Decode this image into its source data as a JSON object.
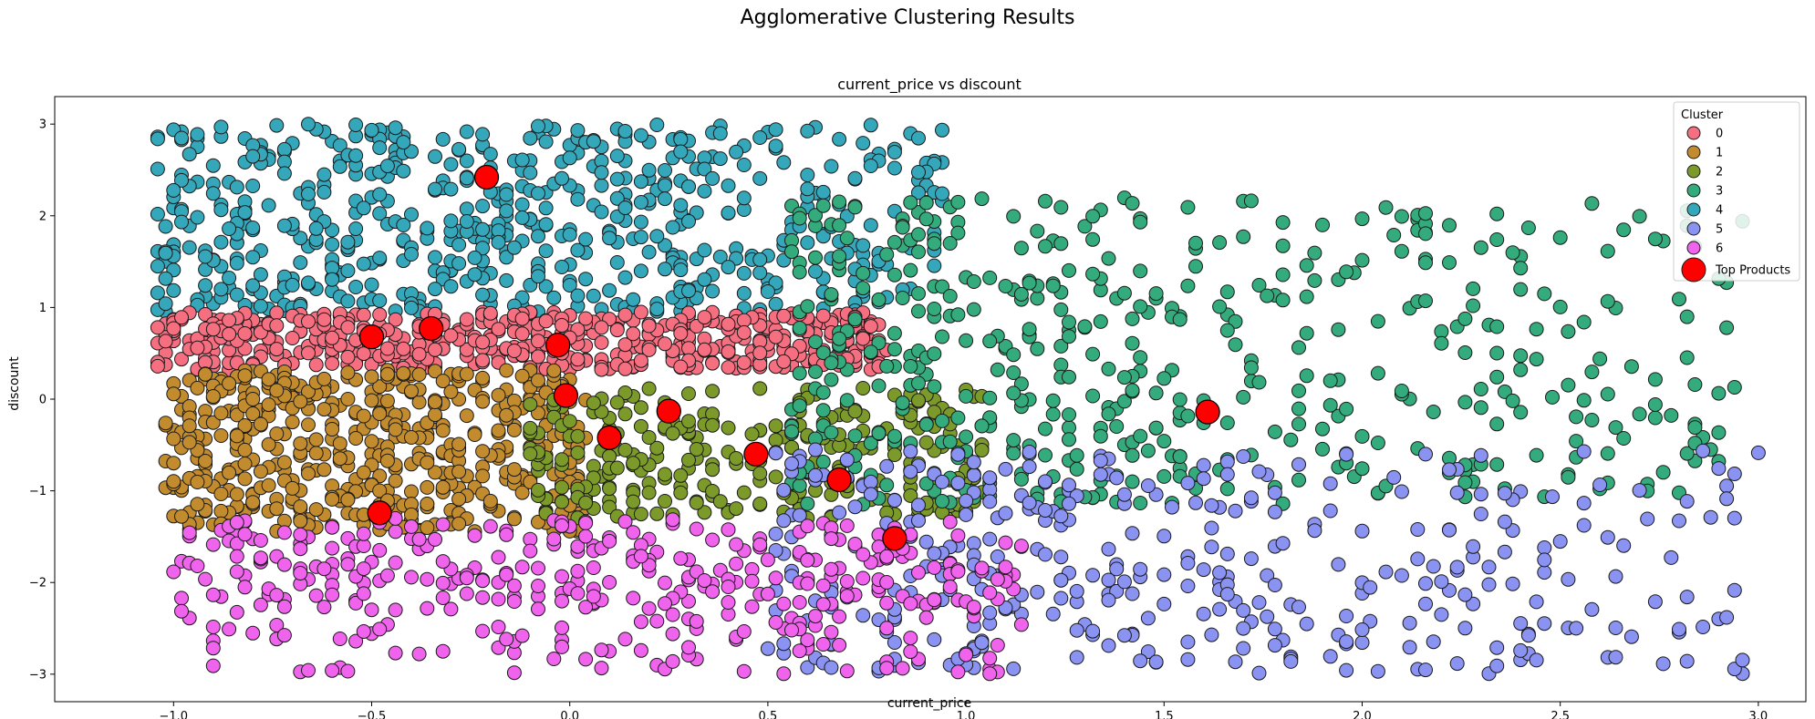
{
  "chart_data": {
    "type": "scatter",
    "title": "Agglomerative Clustering Results",
    "subtitle": "current_price vs discount",
    "xlabel": "current_price",
    "ylabel": "discount",
    "xlim": [
      -1.3,
      3.12
    ],
    "ylim": [
      -3.3,
      3.3
    ],
    "xticks": [
      "−1.0",
      "−0.5",
      "0.0",
      "0.5",
      "1.0",
      "1.5",
      "2.0",
      "2.5",
      "3.0"
    ],
    "xtick_values": [
      -1.0,
      -0.5,
      0.0,
      0.5,
      1.0,
      1.5,
      2.0,
      2.5,
      3.0
    ],
    "yticks": [
      "−3",
      "−2",
      "−1",
      "0",
      "1",
      "2",
      "3"
    ],
    "ytick_values": [
      -3,
      -2,
      -1,
      0,
      1,
      2,
      3
    ],
    "grid": false,
    "legend": {
      "title": "Cluster",
      "placement": "top-right"
    },
    "series": [
      {
        "name": "0",
        "color": "#f56f80",
        "region": {
          "x": [
            -1.05,
            0.8
          ],
          "y": [
            0.32,
            0.95
          ]
        }
      },
      {
        "name": "1",
        "color": "#c28c2e",
        "region": {
          "x": [
            -1.02,
            0.05
          ],
          "y": [
            -1.45,
            0.32
          ]
        }
      },
      {
        "name": "2",
        "color": "#7c9a2a",
        "region": {
          "x": [
            -0.1,
            1.05
          ],
          "y": [
            -1.3,
            0.12
          ]
        }
      },
      {
        "name": "3",
        "color": "#33ab7c",
        "region": {
          "x": [
            0.55,
            3.0
          ],
          "y": [
            -1.15,
            2.2
          ]
        }
      },
      {
        "name": "4",
        "color": "#35a7bb",
        "region": {
          "x": [
            -1.05,
            0.95
          ],
          "y": [
            0.95,
            3.0
          ]
        }
      },
      {
        "name": "5",
        "color": "#8a92f2",
        "region": {
          "x": [
            0.5,
            3.0
          ],
          "y": [
            -3.0,
            -0.55
          ]
        }
      },
      {
        "name": "6",
        "color": "#f063ec",
        "region": {
          "x": [
            -1.0,
            1.15
          ],
          "y": [
            -3.0,
            -1.3
          ]
        }
      }
    ],
    "top_products": {
      "name": "Top Products",
      "color": "#ff0000",
      "points": [
        {
          "x": -0.21,
          "y": 2.42
        },
        {
          "x": -0.5,
          "y": 0.68
        },
        {
          "x": -0.35,
          "y": 0.77
        },
        {
          "x": -0.03,
          "y": 0.59
        },
        {
          "x": -0.01,
          "y": 0.04
        },
        {
          "x": 0.1,
          "y": -0.42
        },
        {
          "x": 0.25,
          "y": -0.13
        },
        {
          "x": 0.47,
          "y": -0.6
        },
        {
          "x": 0.68,
          "y": -0.88
        },
        {
          "x": -0.48,
          "y": -1.24
        },
        {
          "x": 0.82,
          "y": -1.52
        },
        {
          "x": 1.61,
          "y": -0.14
        }
      ]
    }
  }
}
